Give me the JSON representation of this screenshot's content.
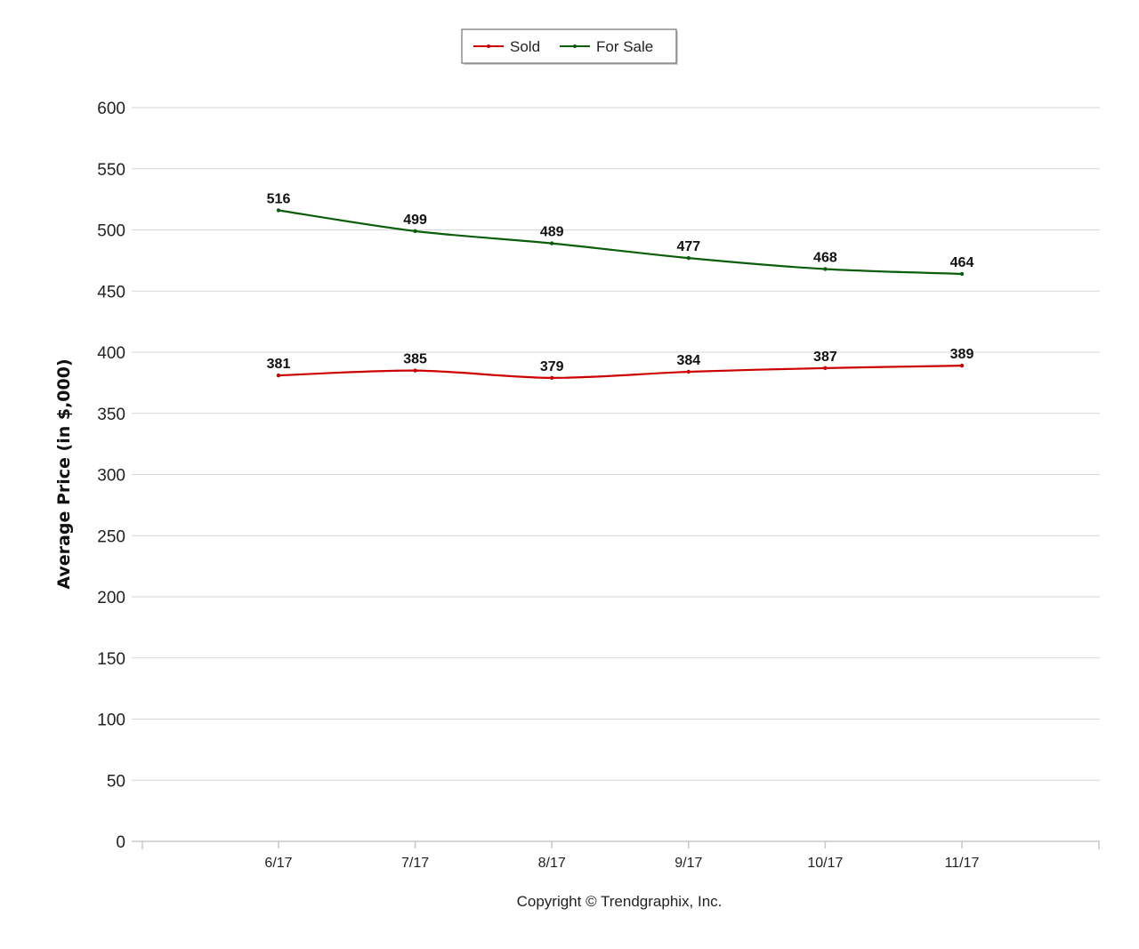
{
  "chart_data": {
    "type": "line",
    "title": "",
    "xlabel": "",
    "ylabel": "Average Price (in $,000)",
    "categories": [
      "6/17",
      "7/17",
      "8/17",
      "9/17",
      "10/17",
      "11/17"
    ],
    "ylim": [
      0,
      600
    ],
    "yticks": [
      0,
      50,
      100,
      150,
      200,
      250,
      300,
      350,
      400,
      450,
      500,
      550,
      600
    ],
    "grid": true,
    "legend_position": "top-center",
    "series": [
      {
        "name": "Sold",
        "color": "#cc0000",
        "values": [
          381,
          385,
          379,
          384,
          387,
          389
        ]
      },
      {
        "name": "For Sale",
        "color": "#0b5e0b",
        "values": [
          516,
          499,
          489,
          477,
          468,
          464
        ]
      }
    ],
    "footer": "Copyright © Trendgraphix, Inc."
  }
}
